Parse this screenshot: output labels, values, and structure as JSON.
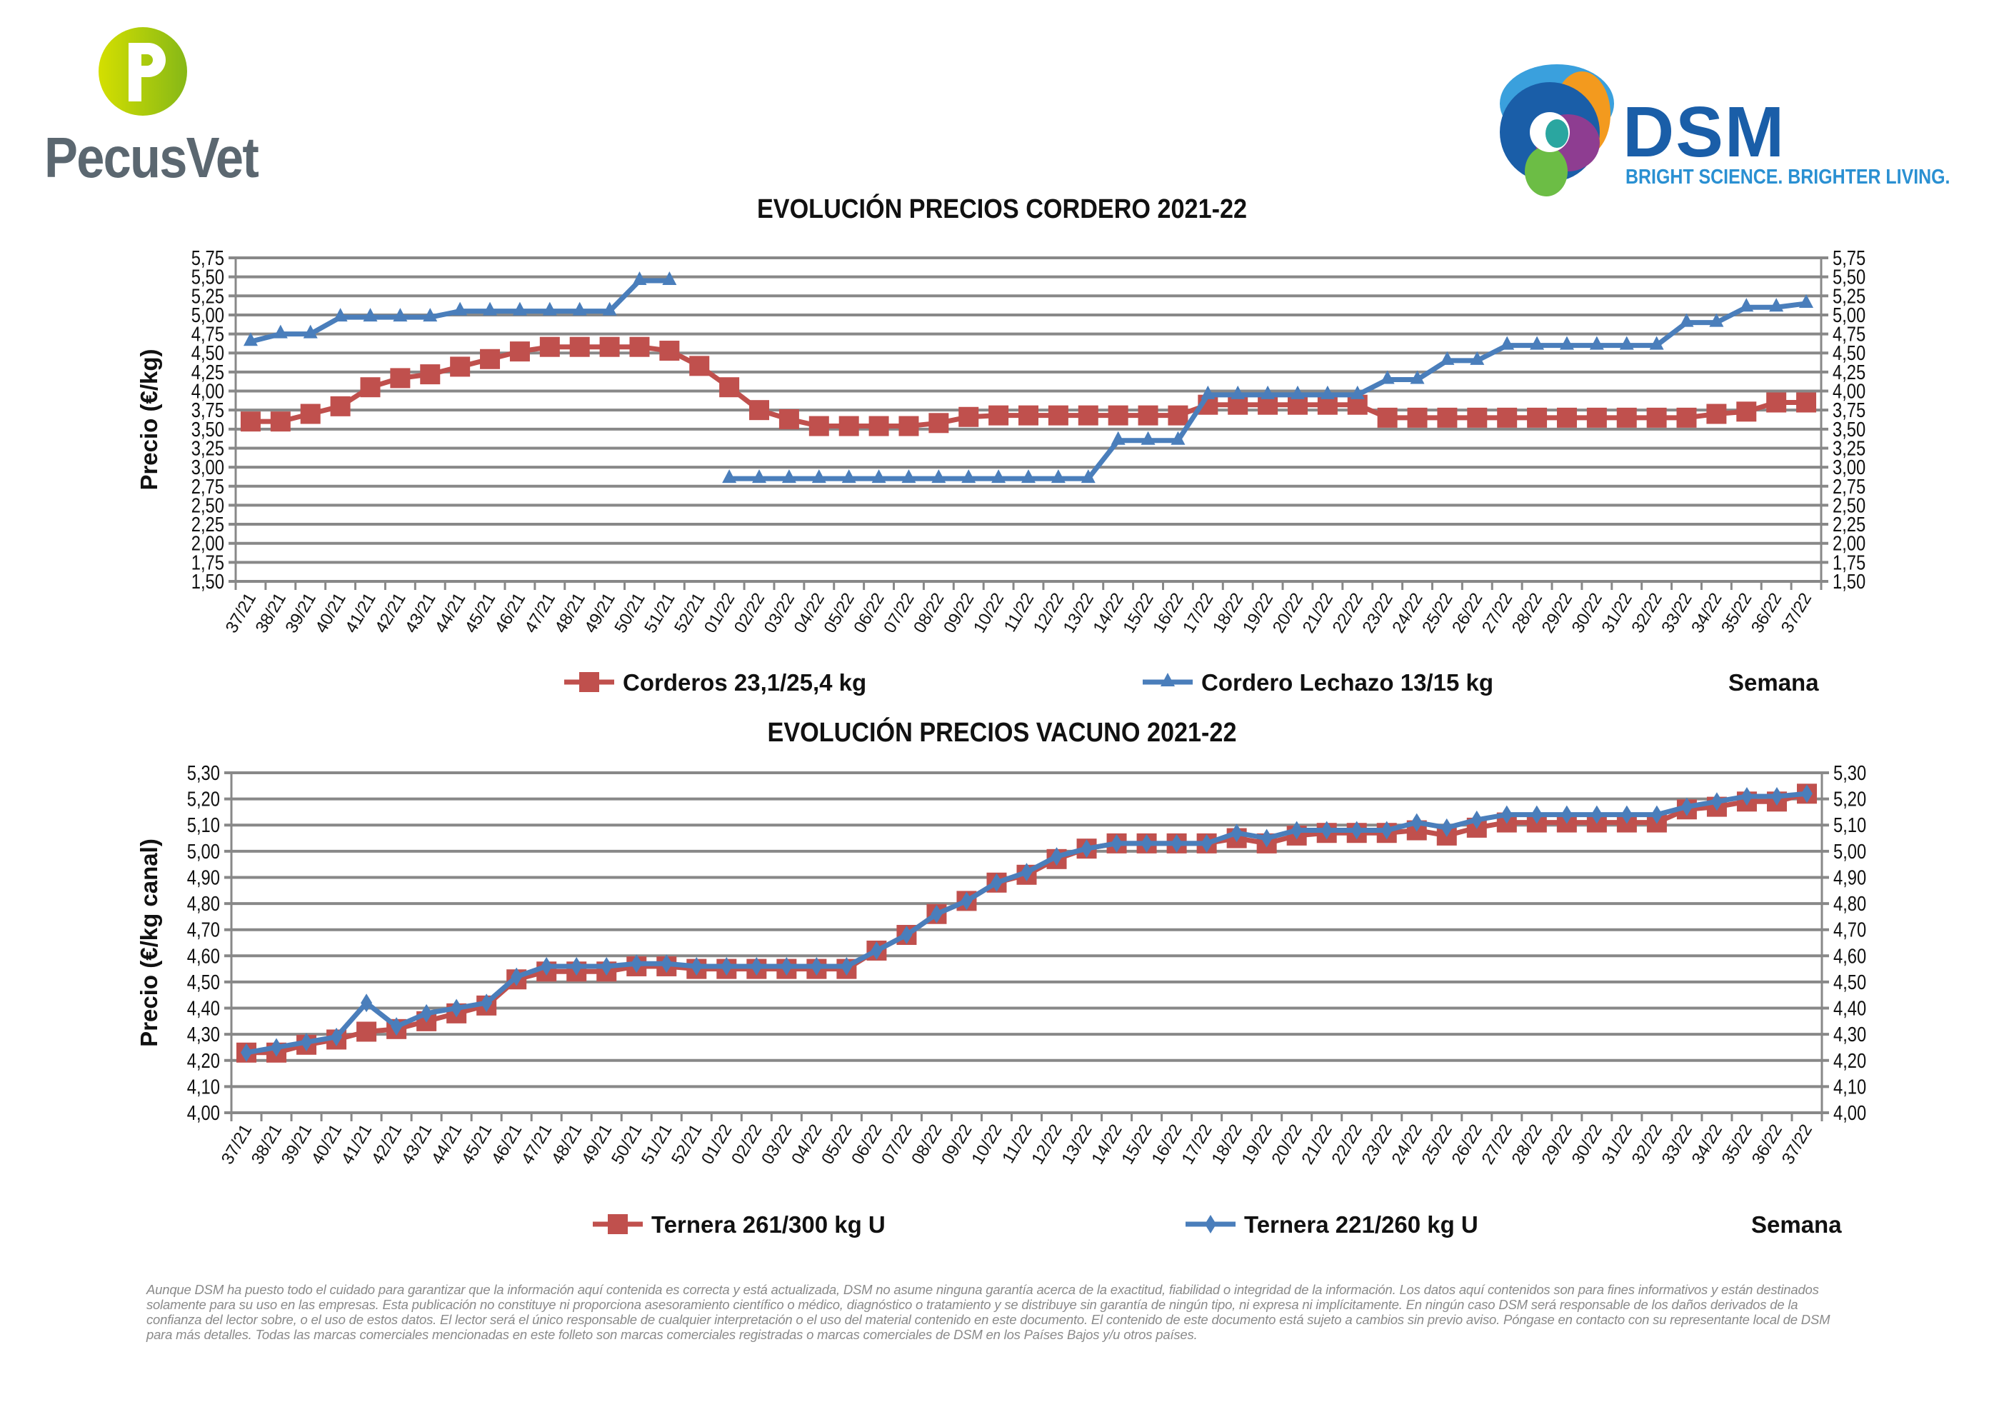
{
  "branding": {
    "left_logo_text": "PecusVet",
    "right_logo_text": "DSM",
    "right_logo_tagline": "BRIGHT SCIENCE. BRIGHTER LIVING."
  },
  "disclaimer": "Aunque DSM ha puesto todo el cuidado para garantizar que la información aquí contenida es correcta y está actualizada, DSM no asume ninguna garantía acerca de la exactitud, fiabilidad o integridad de la información. Los datos aquí contenidos son para fines informativos y están destinados solamente para su uso en las empresas. Esta publicación no constituye ni proporciona asesoramiento científico o médico, diagnóstico o tratamiento y se distribuye sin garantía de ningún tipo, ni expresa ni implícitamente. En ningún caso DSM será responsable de los daños derivados de la confianza del lector sobre, o el uso de estos datos. El lector será el único responsable de cualquier interpretación o el uso del material contenido en este documento. El contenido de este documento está sujeto a cambios sin previo aviso. Póngase en contacto con su representante local de DSM para más detalles. Todas las marcas comerciales mencionadas en este folleto son marcas comerciales registradas o marcas comerciales de DSM en los Países Bajos y/u otros países.",
  "chart_data": [
    {
      "type": "line",
      "title": "EVOLUCIÓN PRECIOS CORDERO 2021-22",
      "ylabel": "Precio (€/kg)",
      "xlabel": "Semana",
      "ylim": [
        1.5,
        5.75
      ],
      "y_ticks": [
        "1,50",
        "1,75",
        "2,00",
        "2,25",
        "2,50",
        "2,75",
        "3,00",
        "3,25",
        "3,50",
        "3,75",
        "4,00",
        "4,25",
        "4,50",
        "4,75",
        "5,00",
        "5,25",
        "5,50",
        "5,75"
      ],
      "y_axis_both_sides": true,
      "grid": true,
      "legend": "bottom",
      "categories": [
        "37/21",
        "38/21",
        "39/21",
        "40/21",
        "41/21",
        "42/21",
        "43/21",
        "44/21",
        "45/21",
        "46/21",
        "47/21",
        "48/21",
        "49/21",
        "50/21",
        "51/21",
        "52/21",
        "01/22",
        "02/22",
        "03/22",
        "04/22",
        "05/22",
        "06/22",
        "07/22",
        "08/22",
        "09/22",
        "10/22",
        "11/22",
        "12/22",
        "13/22",
        "14/22",
        "15/22",
        "16/22",
        "17/22",
        "18/22",
        "19/22",
        "20/22",
        "21/22",
        "22/22",
        "23/22",
        "24/22",
        "25/22",
        "26/22",
        "27/22",
        "28/22",
        "29/22",
        "30/22",
        "31/22",
        "32/22",
        "33/22",
        "34/22",
        "35/22",
        "36/22",
        "37/22"
      ],
      "series": [
        {
          "name": "Corderos 23,1/25,4 kg",
          "color": "#c0504d",
          "marker": "square",
          "values": [
            3.6,
            3.6,
            3.7,
            3.8,
            4.05,
            4.17,
            4.22,
            4.32,
            4.42,
            4.52,
            4.58,
            4.58,
            4.58,
            4.58,
            4.53,
            4.33,
            4.05,
            3.75,
            3.63,
            3.54,
            3.54,
            3.54,
            3.54,
            3.58,
            3.66,
            3.68,
            3.68,
            3.68,
            3.68,
            3.68,
            3.68,
            3.68,
            3.82,
            3.82,
            3.82,
            3.82,
            3.82,
            3.82,
            3.65,
            3.65,
            3.65,
            3.65,
            3.65,
            3.65,
            3.65,
            3.65,
            3.65,
            3.65,
            3.65,
            3.7,
            3.73,
            3.85,
            3.85
          ]
        },
        {
          "name": "Cordero Lechazo 13/15 kg",
          "color": "#4a7ebb",
          "marker": "triangle",
          "values": [
            4.65,
            4.75,
            4.75,
            4.97,
            4.97,
            4.97,
            4.97,
            5.05,
            5.05,
            5.05,
            5.05,
            5.05,
            5.05,
            5.45,
            5.45,
            null,
            2.85,
            2.85,
            2.85,
            2.85,
            2.85,
            2.85,
            2.85,
            2.85,
            2.85,
            2.85,
            2.85,
            2.85,
            2.85,
            3.35,
            3.35,
            3.35,
            3.95,
            3.95,
            3.95,
            3.95,
            3.95,
            3.95,
            4.15,
            4.15,
            4.4,
            4.4,
            4.6,
            4.6,
            4.6,
            4.6,
            4.6,
            4.6,
            4.9,
            4.9,
            5.1,
            5.1,
            5.15
          ]
        }
      ]
    },
    {
      "type": "line",
      "title": "EVOLUCIÓN PRECIOS VACUNO 2021-22",
      "ylabel": "Precio (€/kg canal)",
      "xlabel": "Semana",
      "ylim": [
        4.0,
        5.3
      ],
      "y_ticks": [
        "4,00",
        "4,10",
        "4,20",
        "4,30",
        "4,40",
        "4,50",
        "4,60",
        "4,70",
        "4,80",
        "4,90",
        "5,00",
        "5,10",
        "5,20",
        "5,30"
      ],
      "y_axis_both_sides": true,
      "grid": true,
      "legend": "bottom",
      "categories": [
        "37/21",
        "38/21",
        "39/21",
        "40/21",
        "41/21",
        "42/21",
        "43/21",
        "44/21",
        "45/21",
        "46/21",
        "47/21",
        "48/21",
        "49/21",
        "50/21",
        "51/21",
        "52/21",
        "01/22",
        "02/22",
        "03/22",
        "04/22",
        "05/22",
        "06/22",
        "07/22",
        "08/22",
        "09/22",
        "10/22",
        "11/22",
        "12/22",
        "13/22",
        "14/22",
        "15/22",
        "16/22",
        "17/22",
        "18/22",
        "19/22",
        "20/22",
        "21/22",
        "22/22",
        "23/22",
        "24/22",
        "25/22",
        "26/22",
        "27/22",
        "28/22",
        "29/22",
        "30/22",
        "31/22",
        "32/22",
        "33/22",
        "34/22",
        "35/22",
        "36/22",
        "37/22"
      ],
      "series": [
        {
          "name": "Ternera 261/300 kg U",
          "color": "#c0504d",
          "marker": "square",
          "values": [
            4.23,
            4.23,
            4.26,
            4.28,
            4.31,
            4.32,
            4.35,
            4.38,
            4.41,
            4.51,
            4.54,
            4.54,
            4.54,
            4.56,
            4.56,
            4.55,
            4.55,
            4.55,
            4.55,
            4.55,
            4.55,
            4.62,
            4.68,
            4.76,
            4.81,
            4.88,
            4.91,
            4.97,
            5.01,
            5.03,
            5.03,
            5.03,
            5.03,
            5.05,
            5.03,
            5.06,
            5.07,
            5.07,
            5.07,
            5.08,
            5.06,
            5.09,
            5.11,
            5.11,
            5.11,
            5.11,
            5.11,
            5.11,
            5.16,
            5.17,
            5.19,
            5.19,
            5.22
          ]
        },
        {
          "name": "Ternera 221/260 kg U",
          "color": "#4a7ebb",
          "marker": "diamond",
          "values": [
            4.23,
            4.25,
            4.27,
            4.29,
            4.42,
            4.33,
            4.38,
            4.4,
            4.42,
            4.52,
            4.56,
            4.56,
            4.56,
            4.57,
            4.57,
            4.56,
            4.56,
            4.56,
            4.56,
            4.56,
            4.56,
            4.62,
            4.68,
            4.76,
            4.81,
            4.88,
            4.92,
            4.98,
            5.01,
            5.03,
            5.03,
            5.03,
            5.03,
            5.07,
            5.05,
            5.08,
            5.08,
            5.08,
            5.08,
            5.11,
            5.09,
            5.12,
            5.14,
            5.14,
            5.14,
            5.14,
            5.14,
            5.14,
            5.17,
            5.19,
            5.21,
            5.21,
            5.22
          ]
        }
      ]
    }
  ]
}
